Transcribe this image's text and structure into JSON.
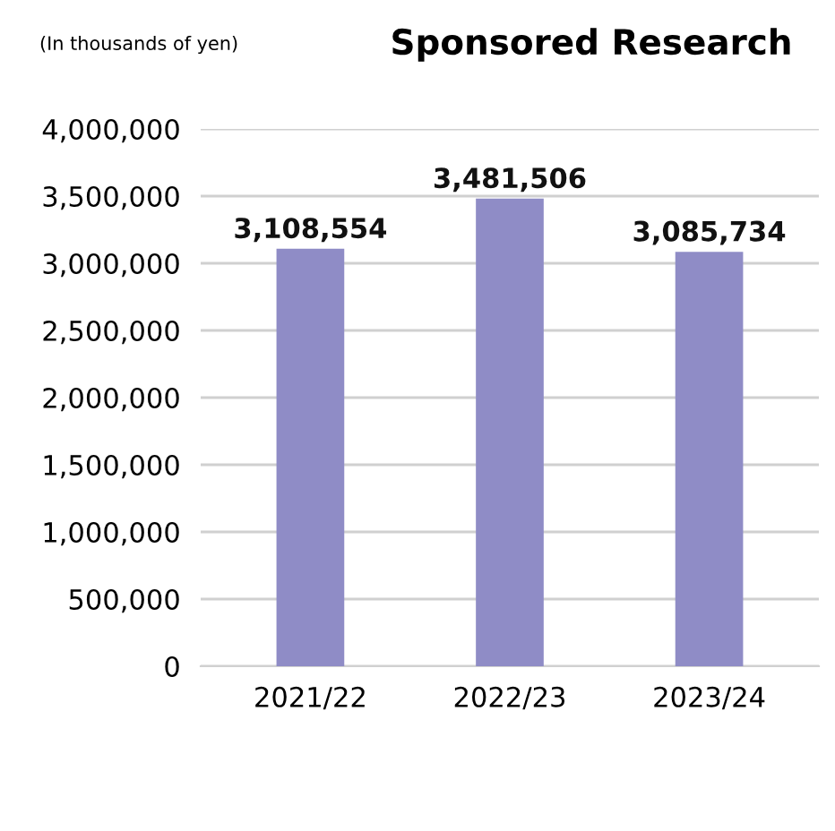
{
  "chart_data": {
    "type": "bar",
    "title": "Sponsored Research",
    "annotations": [
      "(In thousands of yen)"
    ],
    "categories": [
      "2021/22",
      "2022/23",
      "2023/24"
    ],
    "values": [
      3108554,
      3481506,
      3085734
    ],
    "value_labels": [
      "3,108,554",
      "3,481,506",
      "3,085,734"
    ],
    "color": "#8f8cc6",
    "ylim": [
      0,
      4000000
    ],
    "yticks": [
      0,
      {
        "value": 500000,
        "label": "500,000"
      },
      {
        "value": 1000000,
        "label": "1,000,000"
      },
      {
        "value": 1500000,
        "label": "1,500,000"
      },
      {
        "value": 2000000,
        "label": "2,000,000"
      },
      {
        "value": 2500000,
        "label": "2,500,000"
      },
      {
        "value": 3000000,
        "label": "3,000,000"
      },
      {
        "value": 3500000,
        "label": "3,500,000"
      },
      {
        "value": 4000000,
        "label": "4,000,000"
      }
    ],
    "grid": "y"
  }
}
